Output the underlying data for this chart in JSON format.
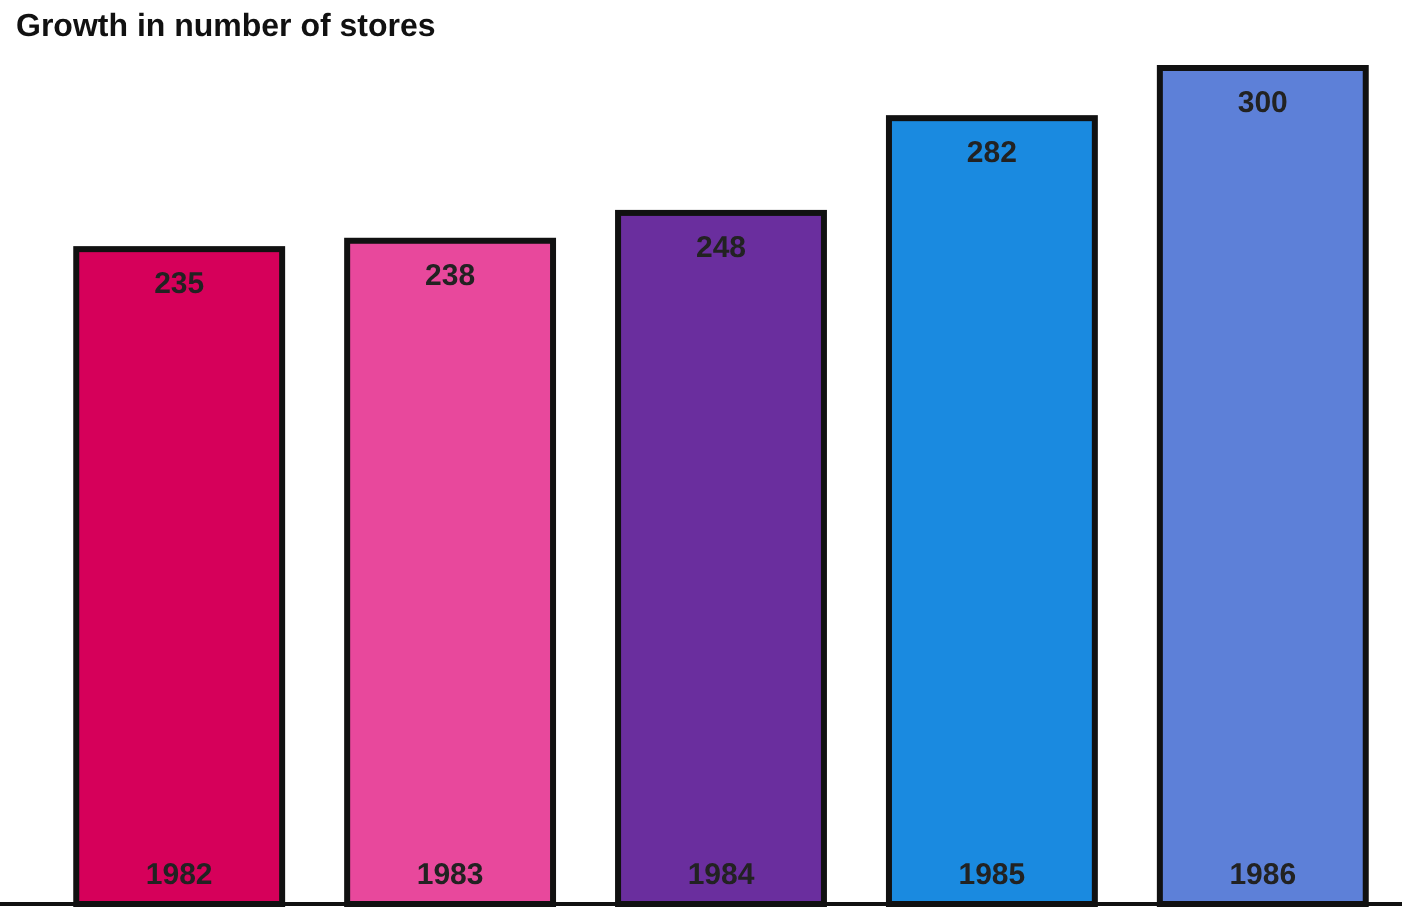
{
  "chart_data": {
    "type": "bar",
    "title": "Growth in number of stores",
    "categories": [
      "1982",
      "1983",
      "1984",
      "1985",
      "1986"
    ],
    "values": [
      235,
      238,
      248,
      282,
      300
    ],
    "colors": [
      "#d6005a",
      "#e8489c",
      "#6a2e9e",
      "#1a8ae0",
      "#5d80d8"
    ],
    "ylim": [
      0,
      300
    ],
    "data_labels": true,
    "tick_labels": "x"
  }
}
